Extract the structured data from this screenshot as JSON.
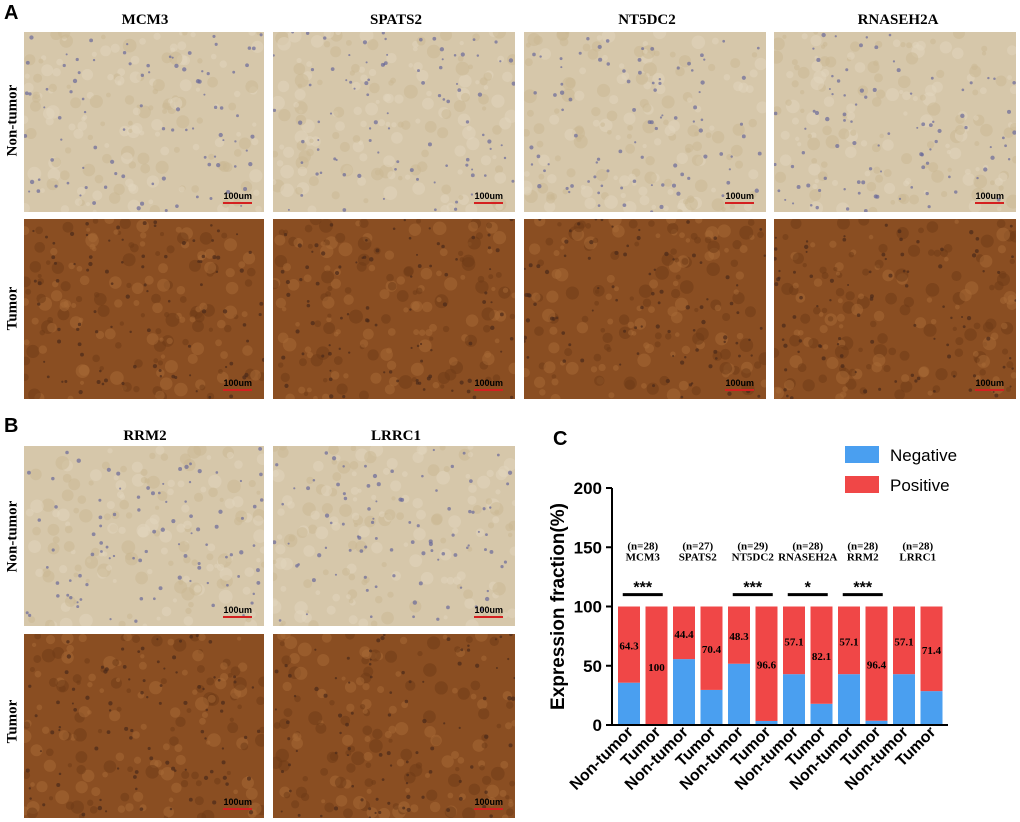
{
  "panels": {
    "a": {
      "letter": "A",
      "genes": [
        "MCM3",
        "SPATS2",
        "NT5DC2",
        "RNASEH2A"
      ],
      "rows": [
        "Non-tumor",
        "Tumor"
      ]
    },
    "b": {
      "letter": "B",
      "genes": [
        "RRM2",
        "LRRC1"
      ],
      "rows": [
        "Non-tumor",
        "Tumor"
      ]
    },
    "c": {
      "letter": "C"
    }
  },
  "scale_bar_label": "100um",
  "tile_colors": {
    "non_tumor": "#d6c7aa",
    "tumor": "#8a4e22"
  },
  "chart_data": {
    "type": "bar",
    "stacked": true,
    "ylabel": "Expression fraction(%)",
    "ylim": [
      0,
      200
    ],
    "yticks": [
      0,
      50,
      100,
      150,
      200
    ],
    "categories": [
      "Non-tumor",
      "Tumor",
      "Non-tumor",
      "Tumor",
      "Non-tumor",
      "Tumor",
      "Non-tumor",
      "Tumor",
      "Non-tumor",
      "Tumor",
      "Non-tumor",
      "Tumor"
    ],
    "series": [
      {
        "name": "Negative",
        "color": "#4a9ff0",
        "values": [
          35.7,
          0,
          55.6,
          29.6,
          51.7,
          3.4,
          42.9,
          17.9,
          42.9,
          3.6,
          42.9,
          28.6
        ]
      },
      {
        "name": "Positive",
        "color": "#f04747",
        "values": [
          64.3,
          100,
          44.4,
          70.4,
          48.3,
          96.6,
          57.1,
          82.1,
          57.1,
          96.4,
          57.1,
          71.4
        ]
      }
    ],
    "bar_labels": [
      "64.3",
      "100",
      "44.4",
      "70.4",
      "48.3",
      "96.6",
      "57.1",
      "82.1",
      "57.1",
      "96.4",
      "57.1",
      "71.4"
    ],
    "groups": [
      {
        "n": "(n=28)",
        "gene": "MCM3",
        "sig": "***"
      },
      {
        "n": "(n=27)",
        "gene": "SPATS2",
        "sig": ""
      },
      {
        "n": "(n=29)",
        "gene": "NT5DC2",
        "sig": "***"
      },
      {
        "n": "(n=28)",
        "gene": "RNASEH2A",
        "sig": "*"
      },
      {
        "n": "(n=28)",
        "gene": "RRM2",
        "sig": "***"
      },
      {
        "n": "(n=28)",
        "gene": "LRRC1",
        "sig": ""
      }
    ],
    "legend": [
      "Negative",
      "Positive"
    ]
  }
}
